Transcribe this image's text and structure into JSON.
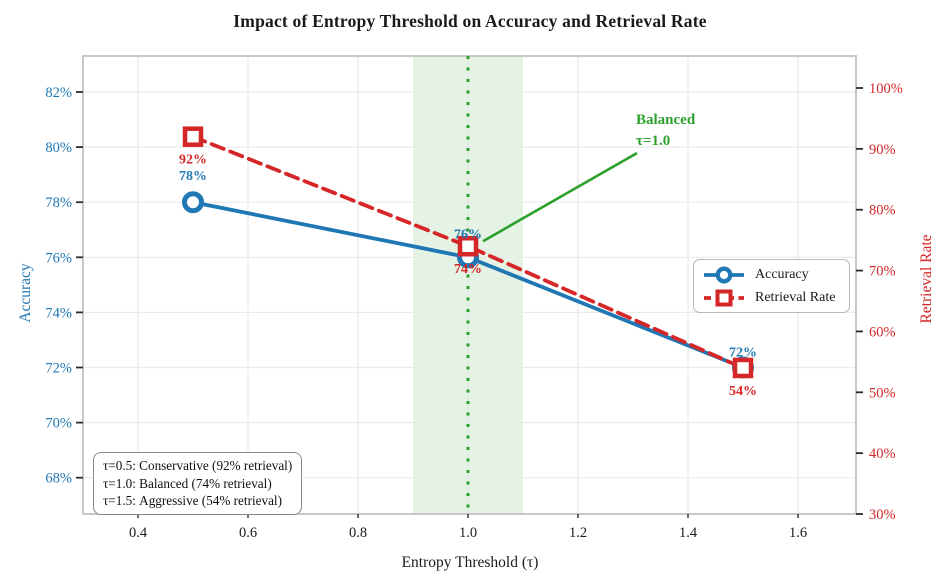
{
  "title": "Impact of Entropy Threshold on Accuracy and Retrieval Rate",
  "chart_data": {
    "type": "line",
    "title": "Impact of Entropy Threshold on Accuracy and Retrieval Rate",
    "xlabel": "Entropy Threshold (τ)",
    "x": [
      0.5,
      1.0,
      1.5
    ],
    "xtick_values": [
      0.4,
      0.6,
      0.8,
      1.0,
      1.2,
      1.4,
      1.6
    ],
    "xticks": [
      "0.4",
      "0.6",
      "0.8",
      "1.0",
      "1.2",
      "1.4",
      "1.6"
    ],
    "xlim": [
      0.3,
      1.7
    ],
    "grid": true,
    "series": [
      {
        "name": "Accuracy",
        "axis": "left",
        "color": "#1f77b4",
        "marker": "circle",
        "line": "solid",
        "values": [
          78,
          76,
          72
        ],
        "labels": [
          "78%",
          "76%",
          "72%"
        ]
      },
      {
        "name": "Retrieval Rate",
        "axis": "right",
        "color": "#d62728",
        "marker": "square",
        "line": "dashed",
        "values": [
          92,
          74,
          54
        ],
        "labels": [
          "92%",
          "74%",
          "54%"
        ]
      }
    ],
    "left_axis": {
      "label": "Accuracy",
      "color": "#1f77b4",
      "tick_values": [
        82,
        80,
        78,
        76,
        74,
        72,
        70,
        68
      ],
      "ticks": [
        "82%",
        "80%",
        "78%",
        "76%",
        "74%",
        "72%",
        "70%",
        "68%"
      ],
      "lim": [
        66.7,
        83.3
      ]
    },
    "right_axis": {
      "label": "Retrieval Rate",
      "color": "#d62728",
      "tick_values": [
        100,
        90,
        80,
        70,
        60,
        50,
        40,
        30
      ],
      "ticks": [
        "100%",
        "90%",
        "80%",
        "70%",
        "60%",
        "50%",
        "40%",
        "30%"
      ],
      "lim": [
        30,
        105.3
      ]
    },
    "highlight_band": {
      "x_from": 0.9,
      "x_to": 1.1,
      "color": "#2ca02c",
      "opacity": 0.13
    },
    "vline": {
      "x": 1.0,
      "color": "#2ca02c",
      "style": "dotted"
    },
    "annotation": {
      "lines": [
        "Balanced",
        "τ=1.0"
      ],
      "color": "#2ca02c",
      "points_to_x": 1.0
    },
    "legend": {
      "position": "middle-right",
      "items": [
        {
          "label": "Accuracy"
        },
        {
          "label": "Retrieval Rate"
        }
      ]
    },
    "notes": [
      "τ=0.5: Conservative (92% retrieval)",
      "τ=1.0: Balanced (74% retrieval)",
      "τ=1.5: Aggressive (54% retrieval)"
    ]
  }
}
